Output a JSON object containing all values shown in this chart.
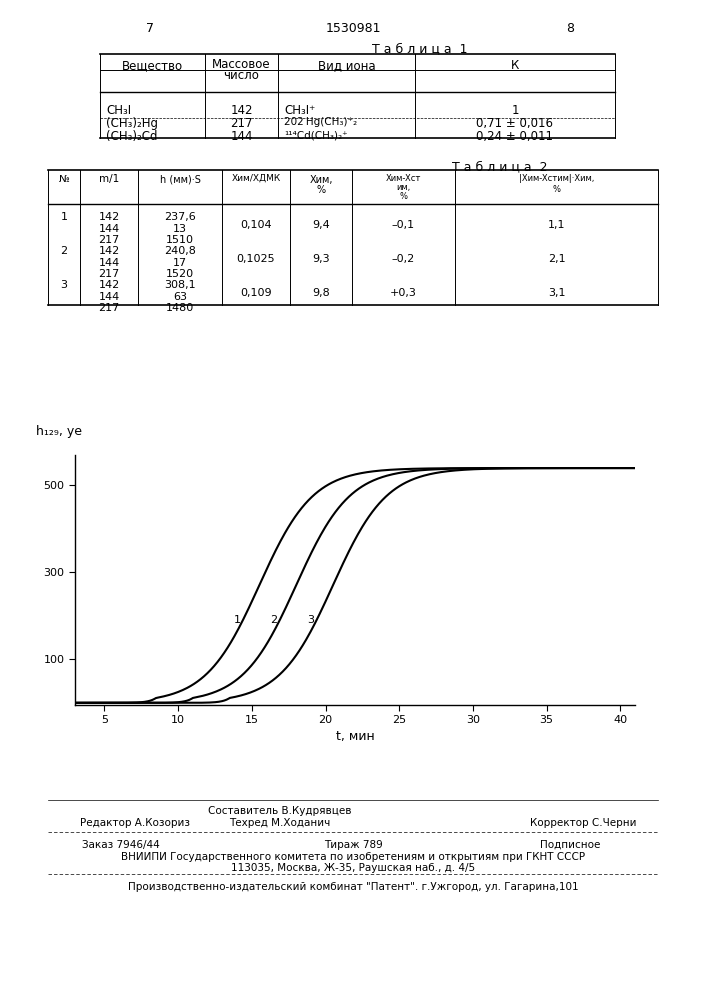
{
  "page_num_left": "7",
  "page_num_center": "1530981",
  "page_num_right": "8",
  "table1_title": "Т а б л и ц а  1",
  "table2_title": "Т а б л и ц а  2",
  "graph_ylabel": "h₁₂₉, уе",
  "graph_xlabel": "t, мин",
  "graph_yticks": [
    100,
    300,
    500
  ],
  "graph_xticks": [
    5,
    10,
    15,
    20,
    25,
    30,
    35,
    40
  ],
  "graph_xlim": [
    3,
    41
  ],
  "graph_ylim": [
    -5,
    570
  ],
  "curve_t0": [
    15.5,
    18.0,
    20.5
  ],
  "curve_k": 0.55,
  "curve_max": 540,
  "footer_composer": "Составитель В.Кудрявцев",
  "footer_tech": "Техред М.Хoданич",
  "footer_editor": "Редактор А.Козориз",
  "footer_corrector": "Корректор С.Черни",
  "footer_order": "Заказ 7946/44",
  "footer_print": "Тираж 789",
  "footer_sub": "Подписное",
  "footer_org": "ВНИИПИ Государственного комитета по изобретениям и открытиям при ГКНТ СССР",
  "footer_addr": "113035, Москва, Ж-35, Раушская наб., д. 4/5",
  "footer_plant": "Производственно-издательский комбинат \"Патент\". г.Ужгород, ул. Гагарина,101",
  "bg_color": "#ffffff",
  "text_color": "#000000"
}
